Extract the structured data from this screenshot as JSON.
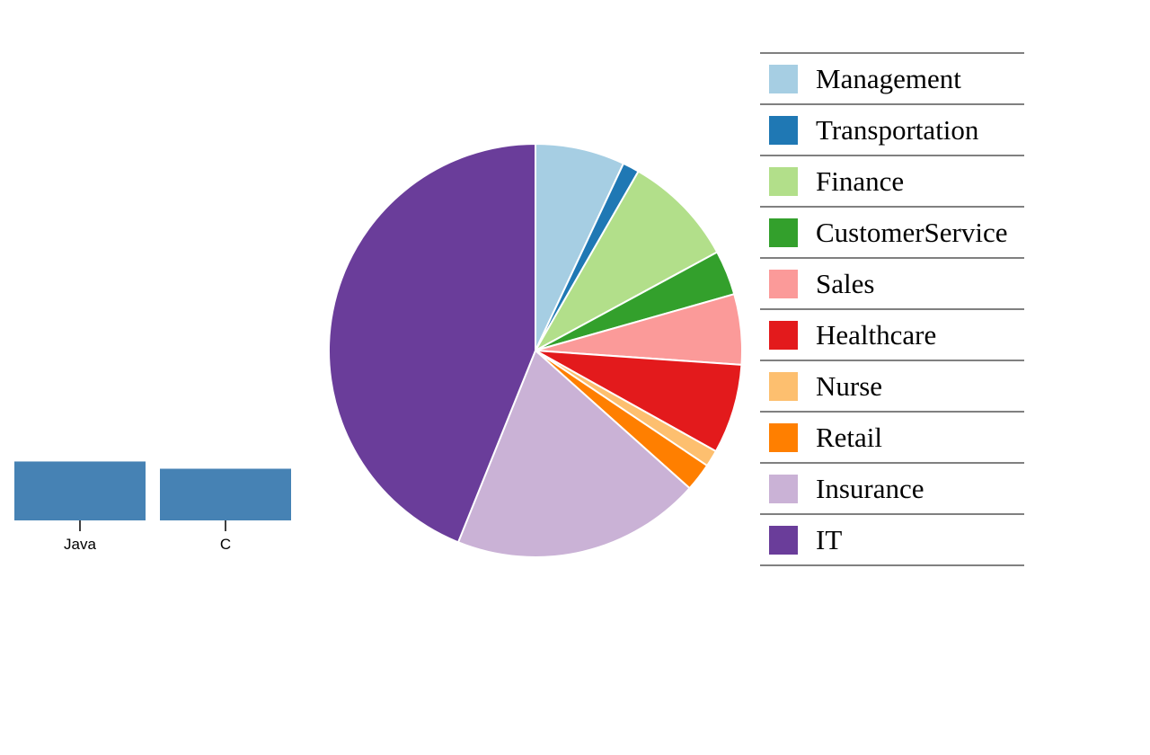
{
  "chart_data": [
    {
      "type": "bar",
      "categories": [
        "Java",
        "C"
      ],
      "values": [
        57,
        50
      ],
      "color": "#4682b4",
      "ylim": [
        0,
        60
      ]
    },
    {
      "type": "pie",
      "slices": [
        {
          "label": "Management",
          "value": 7.0,
          "color": "#a6cee3"
        },
        {
          "label": "Transportation",
          "value": 1.3,
          "color": "#1f78b4"
        },
        {
          "label": "Finance",
          "value": 8.8,
          "color": "#b2df8a"
        },
        {
          "label": "CustomerService",
          "value": 3.5,
          "color": "#33a02c"
        },
        {
          "label": "Sales",
          "value": 5.5,
          "color": "#fb9a99"
        },
        {
          "label": "Healthcare",
          "value": 7.0,
          "color": "#e31a1c"
        },
        {
          "label": "Nurse",
          "value": 1.3,
          "color": "#fdbf6f"
        },
        {
          "label": "Retail",
          "value": 2.2,
          "color": "#ff7f00"
        },
        {
          "label": "Insurance",
          "value": 19.5,
          "color": "#cab2d6"
        },
        {
          "label": "IT",
          "value": 43.9,
          "color": "#6a3d9a"
        }
      ],
      "legend_position": "right"
    }
  ]
}
